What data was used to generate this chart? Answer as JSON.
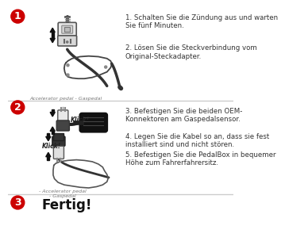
{
  "bg_color": "#ffffff",
  "divider_color": "#cccccc",
  "circle_color": "#cc0000",
  "circle_text_color": "#ffffff",
  "step_numbers": [
    "1",
    "2",
    "3"
  ],
  "step1_text1": "1. Schalten Sie die Zündung aus und warten\nSie fünf Minuten.",
  "step1_text2": "2. Lösen Sie die Steckverbindung vom\nOriginal-Steckadapter.",
  "step1_caption": "Accelerator pedal - Gaspedal",
  "step2_text3": "3. Befestigen Sie die beiden OEM-\nKonnektoren am Gaspedalsensor.",
  "step2_text4": "4. Legen Sie die Kabel so an, dass sie fest\ninstalliert sind und nicht stören.",
  "step2_text5": "5. Befestigen Sie die PedalBox in bequemer\nHöhe zum Fahrerfahrersitz.",
  "step2_caption": "- Accelerator pedal\n- Gaspedal",
  "step3_text": "Fertig!",
  "click1_label": "Klick!",
  "click2_label": "Klick!",
  "text_color": "#333333",
  "diagram_color": "#222222",
  "light_gray": "#cccccc",
  "dark_gray": "#444444"
}
